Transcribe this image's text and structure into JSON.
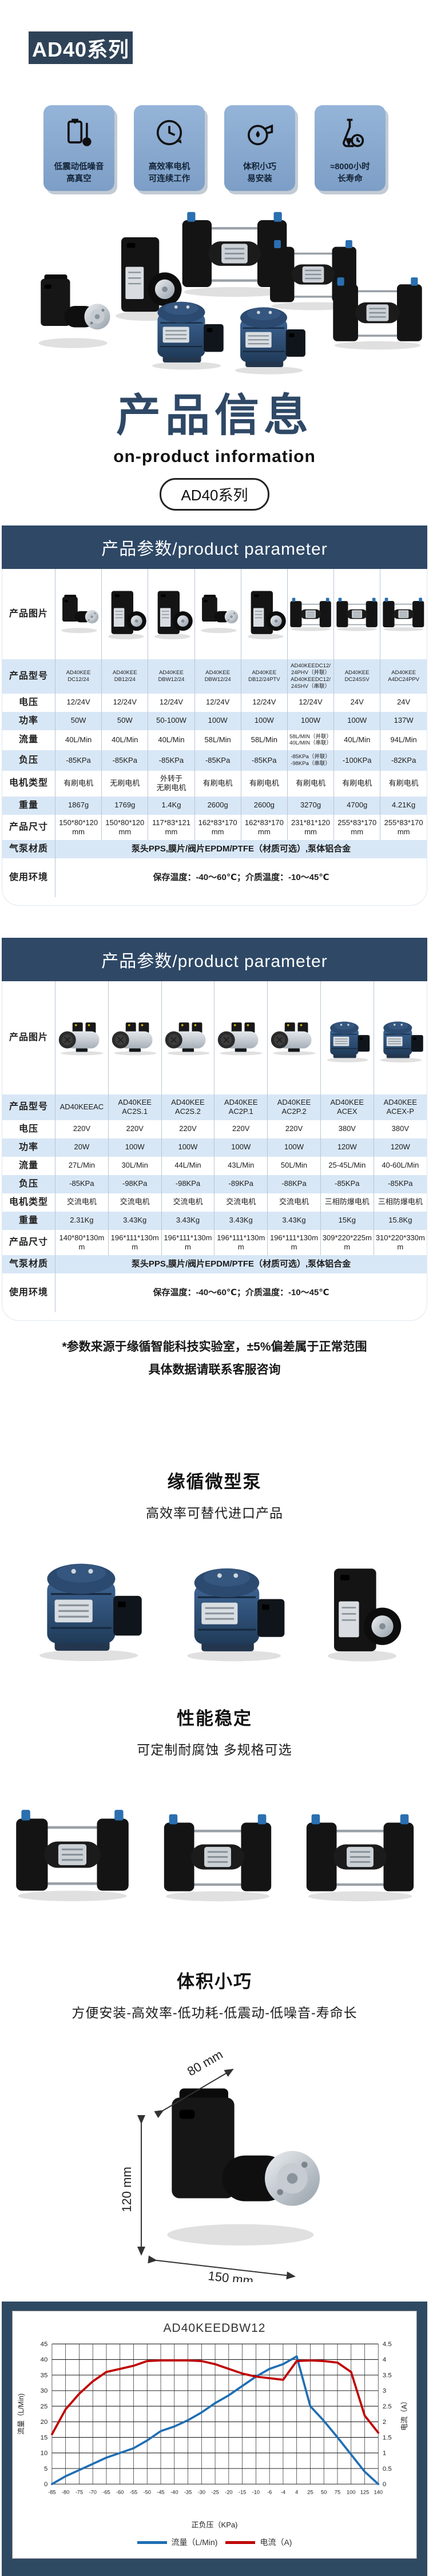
{
  "series_badge": "AD40系列",
  "features": [
    {
      "icon": "vibration-meter-icon",
      "line1": "低震动低噪音",
      "line2": "高真空"
    },
    {
      "icon": "continuous-clock-icon",
      "line1": "高效率电机",
      "line2": "可连续工作"
    },
    {
      "icon": "pump-volute-icon",
      "line1": "体积小巧",
      "line2": "易安装"
    },
    {
      "icon": "flask-timer-icon",
      "line1": "≈8000小时",
      "line2": "长寿命"
    }
  ],
  "info": {
    "title": "产品信息",
    "subtitle": "on-product information",
    "badge": "AD40系列"
  },
  "tables": [
    {
      "title": "产品参数/product parameter",
      "column_count": 8,
      "photos": [
        "pump-black-l",
        "pump-black-tower",
        "pump-black-tower",
        "pump-black-l",
        "pump-black-tower",
        "pump-h-frame",
        "pump-h-frame",
        "pump-h-frame"
      ],
      "rows": [
        {
          "label": "产品图片",
          "type": "images"
        },
        {
          "label": "产品型号",
          "cells": [
            "AD40KEE\nDC12/24",
            "AD40KEE\nDB12/24",
            "AD40KEE\nDBW12/24",
            "AD40KEE\nDBW12/24",
            "AD40KEE\nDB12/24PTV",
            "AD40KEEDC12/\n24PHV（并联）\nAD40KEEDC12/\n24SHV（串联）",
            "AD40KEE\nDC24SSV",
            "AD40KEE\nA4DC24PPV"
          ]
        },
        {
          "label": "电压",
          "cells": [
            "12/24V",
            "12/24V",
            "12/24V",
            "12/24V",
            "12/24V",
            "12/24V",
            "24V",
            "24V"
          ]
        },
        {
          "label": "功率",
          "cells": [
            "50W",
            "50W",
            "50-100W",
            "100W",
            "100W",
            "100W",
            "100W",
            "137W"
          ]
        },
        {
          "label": "流量",
          "cells": [
            "40L/Min",
            "40L/Min",
            "40L/Min",
            "58L/Min",
            "58L/Min",
            "58L/MIN（并联）\n40L/MIN（串联）",
            "40L/Min",
            "94L/Min"
          ]
        },
        {
          "label": "负压",
          "cells": [
            "-85KPa",
            "-85KPa",
            "-85KPa",
            "-85KPa",
            "-85KPa",
            "-85KPa（并联）\n-98KPa（串联）",
            "-100KPa",
            "-82KPa"
          ]
        },
        {
          "label": "电机类型",
          "cells": [
            "有刷电机",
            "无刷电机",
            "外转于\n无刷电机",
            "有刷电机",
            "有刷电机",
            "有刷电机",
            "有刷电机",
            "有刷电机"
          ]
        },
        {
          "label": "重量",
          "cells": [
            "1867g",
            "1769g",
            "1.4Kg",
            "2600g",
            "2600g",
            "3270g",
            "4700g",
            "4.21Kg"
          ]
        },
        {
          "label": "产品尺寸",
          "cells": [
            "150*80*120mm",
            "150*80*120mm",
            "117*83*121mm",
            "162*83*170mm",
            "162*83*170mm",
            "231*81*120mm",
            "255*83*170mm",
            "255*83*170mm"
          ]
        },
        {
          "label": "气泵材质",
          "span": "泵头PPS,膜片/阀片EPDM/PTFE（材质可选）,泵体铝合金"
        },
        {
          "label": "使用环境",
          "span": "保存温度：-40～60℃；介质温度：-10～45℃"
        }
      ]
    },
    {
      "title": "产品参数/product parameter",
      "column_count": 7,
      "photos": [
        "pump-twin-head",
        "pump-twin-head",
        "pump-twin-head",
        "pump-twin-head",
        "pump-twin-head",
        "pump-blue-dome",
        "pump-blue-dome"
      ],
      "rows": [
        {
          "label": "产品图片",
          "type": "images"
        },
        {
          "label": "产品型号",
          "cells": [
            "AD40KEEAC",
            "AD40KEE\nAC2S.1",
            "AD40KEE\nAC2S.2",
            "AD40KEE\nAC2P.1",
            "AD40KEE\nAC2P.2",
            "AD40KEE\nACEX",
            "AD40KEE\nACEX-P"
          ]
        },
        {
          "label": "电压",
          "cells": [
            "220V",
            "220V",
            "220V",
            "220V",
            "220V",
            "380V",
            "380V"
          ]
        },
        {
          "label": "功率",
          "cells": [
            "20W",
            "100W",
            "100W",
            "100W",
            "100W",
            "120W",
            "120W"
          ]
        },
        {
          "label": "流量",
          "cells": [
            "27L/Min",
            "30L/Min",
            "44L/Min",
            "43L/Min",
            "50L/Min",
            "25-45L/Min",
            "40-60L/Min"
          ]
        },
        {
          "label": "负压",
          "cells": [
            "-85KPa",
            "-98KPa",
            "-98KPa",
            "-89KPa",
            "-88KPa",
            "-85KPa",
            "-85KPa"
          ]
        },
        {
          "label": "电机类型",
          "cells": [
            "交流电机",
            "交流电机",
            "交流电机",
            "交流电机",
            "交流电机",
            "三相防爆电机",
            "三相防爆电机"
          ]
        },
        {
          "label": "重量",
          "cells": [
            "2.31Kg",
            "3.43Kg",
            "3.43Kg",
            "3.43Kg",
            "3.43Kg",
            "15Kg",
            "15.8Kg"
          ]
        },
        {
          "label": "产品尺寸",
          "cells": [
            "140*80*130mm",
            "196*111*130mm",
            "196*111*130mm",
            "196*111*130mm",
            "196*111*130mm",
            "309*220*225mm",
            "310*220*330mm"
          ]
        },
        {
          "label": "气泵材质",
          "span": "泵头PPS,膜片/阀片EPDM/PTFE（材质可选）,泵体铝合金"
        },
        {
          "label": "使用环境",
          "span": "保存温度：-40～60℃；介质温度：-10～45℃"
        }
      ]
    }
  ],
  "disclaimer": {
    "line1": "*参数来源于缘循智能科技实验室，±5%偏差属于正常范围",
    "line2": "具体数据请联系客服咨询"
  },
  "sections": [
    {
      "title": "缘循微型泵",
      "subtitle": "高效率可替代进口产品"
    },
    {
      "title": "性能稳定",
      "subtitle": "可定制耐腐蚀 多规格可选"
    },
    {
      "title": "体积小巧",
      "subtitle": "方便安装-高效率-低功耗-低震动-低噪音-寿命长"
    }
  ],
  "dimensions": {
    "width_label": "80 mm",
    "height_label": "120 mm",
    "length_label": "150 mm"
  },
  "colors": {
    "brand_navy": "#2e4866",
    "card_blue": "#85a5cc",
    "table_row_blue": "#d8e7f6"
  },
  "chart_data": {
    "type": "line",
    "title": "AD40KEEDBW12",
    "xlabel": "正负压（KPa)",
    "x_categories": [
      "-85",
      "-80",
      "-75",
      "-70",
      "-65",
      "-60",
      "-55",
      "-50",
      "-45",
      "-40",
      "-35",
      "-30",
      "-25",
      "-20",
      "-15",
      "-10",
      "-6",
      "-4",
      "4",
      "25",
      "50",
      "75",
      "100",
      "125",
      "140"
    ],
    "left_axis": {
      "label": "流量（L/Min)",
      "lim": [
        0,
        45
      ],
      "step": 5
    },
    "right_axis": {
      "label": "电流（A）",
      "lim": [
        0,
        4.5
      ],
      "step": 0.5
    },
    "grid": true,
    "legend_position": "bottom",
    "series": [
      {
        "name": "流量（L/Min)",
        "axis": "left",
        "color": "#1f6eb4",
        "values": [
          0,
          2.5,
          4.5,
          6.5,
          8.5,
          10,
          11.5,
          14,
          17,
          18.5,
          20.5,
          23,
          26,
          28.5,
          31.5,
          34.5,
          37,
          38.5,
          41,
          25,
          20.3,
          15,
          9.5,
          4,
          0
        ]
      },
      {
        "name": "电流（A)",
        "axis": "right",
        "color": "#c00000",
        "values": [
          1.6,
          2.4,
          2.9,
          3.3,
          3.6,
          3.7,
          3.8,
          3.95,
          3.97,
          3.97,
          3.97,
          3.95,
          3.85,
          3.7,
          3.55,
          3.45,
          3.4,
          3.35,
          3.95,
          3.97,
          3.95,
          3.9,
          3.6,
          2.2,
          1.65
        ]
      }
    ]
  }
}
